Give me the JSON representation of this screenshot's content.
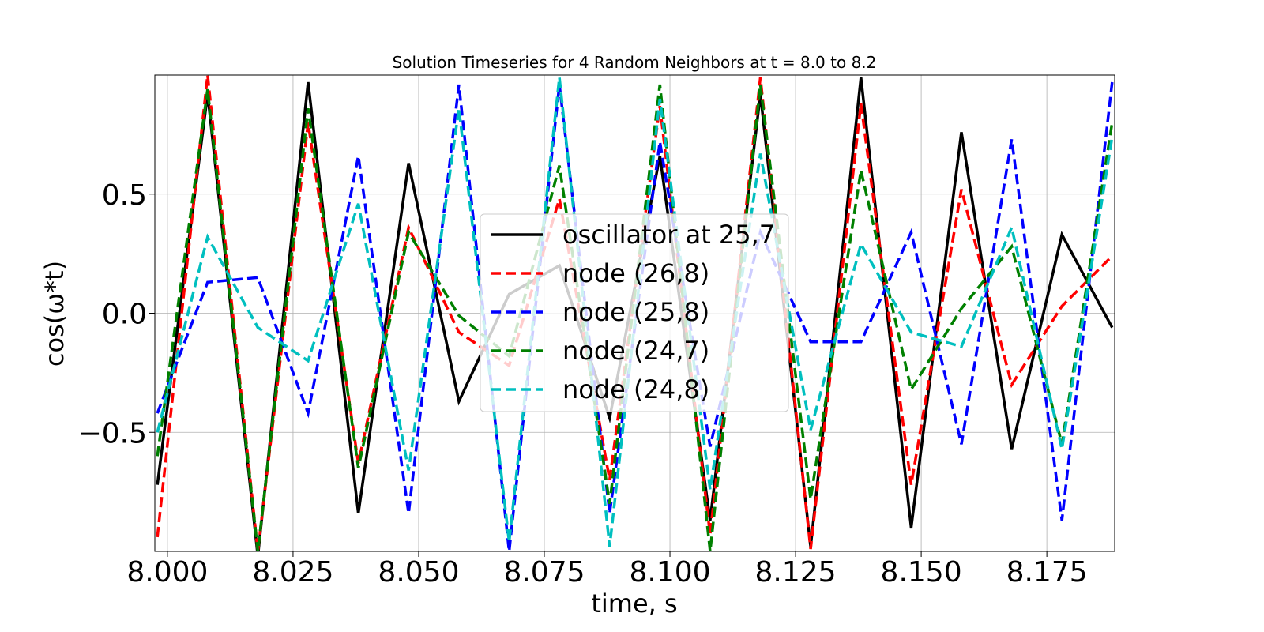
{
  "chart_data": {
    "type": "line",
    "title": "Solution Timeseries for 4 Random Neighbors at t = 8.0 to 8.2",
    "xlabel": "time, s",
    "ylabel": "cos(ω*t)",
    "xlim": [
      7.9975,
      8.1885
    ],
    "ylim": [
      -1.0,
      1.0
    ],
    "xticks": [
      8.0,
      8.025,
      8.05,
      8.075,
      8.1,
      8.125,
      8.15,
      8.175
    ],
    "xtick_labels": [
      "8.000",
      "8.025",
      "8.050",
      "8.075",
      "8.100",
      "8.125",
      "8.150",
      "8.175"
    ],
    "yticks": [
      -0.5,
      0.0,
      0.5
    ],
    "ytick_labels": [
      "−0.5",
      "0.0",
      "0.5"
    ],
    "grid": true,
    "legend": "center",
    "x": [
      7.998,
      8.008,
      8.018,
      8.028,
      8.038,
      8.048,
      8.058,
      8.068,
      8.078,
      8.088,
      8.098,
      8.108,
      8.118,
      8.128,
      8.138,
      8.148,
      8.158,
      8.168,
      8.178,
      8.188
    ],
    "series": [
      {
        "name": "oscillator at 25,7",
        "color": "#000000",
        "dash": "solid",
        "values": [
          -0.72,
          0.92,
          -1.02,
          0.97,
          -0.84,
          0.63,
          -0.37,
          0.08,
          0.2,
          -0.44,
          0.66,
          -0.87,
          0.92,
          -0.98,
          0.99,
          -0.9,
          0.76,
          -0.57,
          0.33,
          -0.06
        ]
      },
      {
        "name": "node (26,8)",
        "color": "#ff0000",
        "dash": "dashed",
        "values": [
          -0.94,
          1.0,
          -1.0,
          0.8,
          -0.63,
          0.36,
          -0.08,
          -0.22,
          0.48,
          -0.7,
          0.87,
          -0.93,
          0.99,
          -0.99,
          0.88,
          -0.72,
          0.52,
          -0.3,
          0.03,
          0.24
        ]
      },
      {
        "name": "node (25,8)",
        "color": "#0000ff",
        "dash": "dashed",
        "values": [
          -0.42,
          0.13,
          0.15,
          -0.42,
          0.66,
          -0.84,
          0.96,
          -1.0,
          0.96,
          -0.84,
          0.72,
          -0.56,
          0.34,
          -0.12,
          -0.12,
          0.34,
          -0.55,
          0.73,
          -0.87,
          0.97
        ]
      },
      {
        "name": "node (24,7)",
        "color": "#008000",
        "dash": "dashed",
        "values": [
          -0.6,
          0.94,
          -1.0,
          0.86,
          -0.65,
          0.34,
          -0.01,
          -0.18,
          0.62,
          -0.8,
          0.96,
          -1.0,
          0.96,
          -0.78,
          0.6,
          -0.32,
          0.02,
          0.28,
          -0.55,
          0.8
        ]
      },
      {
        "name": "node (24,8)",
        "color": "#00bfbf",
        "dash": "dashed",
        "values": [
          -0.5,
          0.32,
          -0.06,
          -0.2,
          0.46,
          -0.66,
          0.86,
          -0.96,
          0.99,
          -0.98,
          0.9,
          -0.74,
          0.67,
          -0.49,
          0.29,
          -0.08,
          -0.14,
          0.36,
          -0.57,
          0.74
        ]
      }
    ]
  }
}
